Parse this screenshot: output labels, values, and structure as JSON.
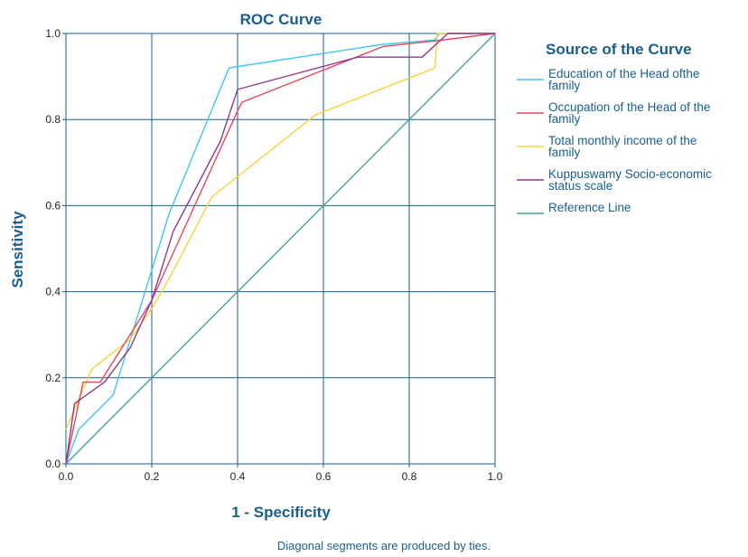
{
  "chart_data": {
    "type": "line",
    "title": "ROC Curve",
    "xlabel": "1 - Specificity",
    "ylabel": "Sensitivity",
    "xlim": [
      0,
      1
    ],
    "ylim": [
      0,
      1
    ],
    "xticks": [
      "0.0",
      "0.2",
      "0.4",
      "0.6",
      "0.8",
      "1.0"
    ],
    "yticks": [
      "0.0",
      "0.2",
      "0.4",
      "0.6",
      "0.8",
      "1.0"
    ],
    "grid": true,
    "legend_title": "Source of the Curve",
    "legend_position": "right",
    "footnote": "Diagonal segments are produced by ties.",
    "series": [
      {
        "name": "Education of the Head ofthe family",
        "color": "#3ec6f0",
        "x": [
          0,
          0.03,
          0.11,
          0.2,
          0.24,
          0.38,
          0.74,
          0.86,
          0.87,
          1.0
        ],
        "y": [
          0,
          0.08,
          0.16,
          0.45,
          0.58,
          0.92,
          0.975,
          0.985,
          1.0,
          1.0
        ]
      },
      {
        "name": "Occupation of the Head of the family",
        "color": "#e8455a",
        "x": [
          0,
          0.04,
          0.08,
          0.2,
          0.4,
          0.41,
          0.74,
          0.88,
          1.0
        ],
        "y": [
          0,
          0.19,
          0.19,
          0.38,
          0.82,
          0.84,
          0.97,
          0.985,
          1.0
        ]
      },
      {
        "name": "Total monthly income of the family",
        "color": "#f5d33b",
        "x": [
          0,
          0.06,
          0.15,
          0.2,
          0.24,
          0.34,
          0.58,
          0.86,
          0.865,
          1.0
        ],
        "y": [
          0.08,
          0.22,
          0.29,
          0.36,
          0.43,
          0.62,
          0.81,
          0.92,
          1.0,
          1.0
        ]
      },
      {
        "name": "Kuppuswamy Socio-economic status scale",
        "color": "#8e3a8c",
        "x": [
          0,
          0.02,
          0.09,
          0.15,
          0.2,
          0.25,
          0.36,
          0.4,
          0.68,
          0.83,
          0.89,
          1.0
        ],
        "y": [
          0,
          0.14,
          0.19,
          0.27,
          0.38,
          0.54,
          0.75,
          0.87,
          0.945,
          0.945,
          1.0,
          1.0
        ]
      },
      {
        "name": "Reference Line",
        "color": "#46a39a",
        "x": [
          0,
          1
        ],
        "y": [
          0,
          1
        ]
      }
    ]
  },
  "legend_labels": [
    [
      "Education of the Head ofthe",
      "family"
    ],
    [
      "Occupation of the Head of the",
      "family"
    ],
    [
      "Total monthly income of the",
      "family"
    ],
    [
      "Kuppuswamy Socio-economic",
      "status scale"
    ],
    [
      "Reference Line"
    ]
  ]
}
